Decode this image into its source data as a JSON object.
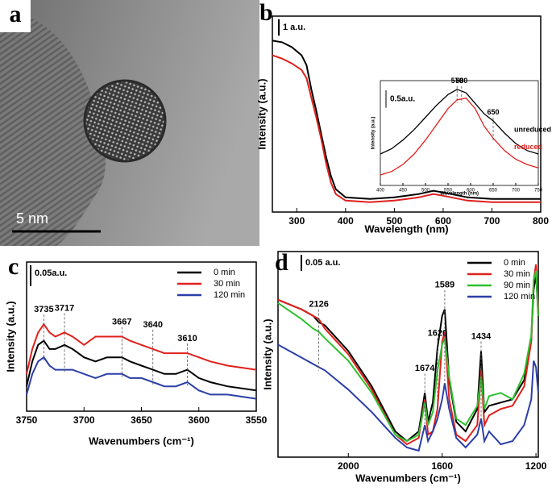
{
  "image_panel": {
    "label": "a",
    "scale_bar": "5 nm"
  },
  "chart_data": [
    {
      "type": "line",
      "panel": "b",
      "xlabel": "Wavelength (nm)",
      "ylabel": "Intensity (a.u.)",
      "xlim": [
        250,
        800
      ],
      "xticks": [
        300,
        400,
        500,
        600,
        700,
        800
      ],
      "ylim": [
        0,
        12
      ],
      "scale_bar": {
        "value": 1,
        "label": "1 a.u."
      },
      "x": [
        250,
        270,
        290,
        310,
        320,
        330,
        340,
        350,
        360,
        370,
        380,
        400,
        450,
        500,
        550,
        580,
        600,
        650,
        700,
        750,
        800
      ],
      "series": [
        {
          "color": "#000000",
          "values": [
            10.5,
            10.4,
            10.1,
            9.6,
            9.0,
            7.5,
            6.2,
            4.8,
            3.4,
            2.2,
            1.4,
            0.9,
            0.8,
            0.9,
            1.1,
            1.3,
            1.2,
            0.9,
            0.8,
            0.8,
            0.8
          ]
        },
        {
          "color": "#e0201c",
          "values": [
            9.6,
            9.4,
            9.1,
            8.7,
            8.2,
            7.0,
            5.8,
            4.5,
            3.0,
            1.8,
            1.1,
            0.7,
            0.6,
            0.7,
            0.9,
            1.1,
            1.0,
            0.7,
            0.6,
            0.6,
            0.6
          ]
        }
      ]
    },
    {
      "type": "line",
      "xlabel": "Wavelength (nm)",
      "ylabel": "Intensity (a.u.)",
      "xlim": [
        400,
        750
      ],
      "xticks": [
        400,
        450,
        500,
        550,
        600,
        650,
        700,
        750
      ],
      "ylim": [
        0,
        3
      ],
      "scale_bar": {
        "value": 0.5,
        "label": "0.5a.u."
      },
      "peaks": [
        570,
        580,
        650
      ],
      "x": [
        400,
        425,
        450,
        475,
        500,
        525,
        550,
        570,
        590,
        610,
        630,
        650,
        675,
        700,
        725,
        750
      ],
      "series": [
        {
          "name": "unreduced",
          "color": "#000000",
          "values": [
            0.9,
            1.05,
            1.3,
            1.6,
            1.95,
            2.3,
            2.6,
            2.75,
            2.65,
            2.35,
            2.05,
            1.85,
            1.5,
            1.2,
            1.0,
            0.9
          ]
        },
        {
          "name": "reduced",
          "color": "#e0201c",
          "values": [
            0.3,
            0.4,
            0.6,
            0.9,
            1.3,
            1.75,
            2.2,
            2.45,
            2.5,
            2.2,
            1.7,
            1.35,
            1.0,
            0.75,
            0.6,
            0.5
          ]
        }
      ]
    },
    {
      "type": "line",
      "panel": "c",
      "xlabel": "Wavenumbers (cm⁻¹)",
      "ylabel": "Intensity (a.u.)",
      "xlim": [
        3750,
        3550
      ],
      "xticks": [
        3750,
        3700,
        3650,
        3600,
        3550
      ],
      "ylim": [
        0,
        0.36
      ],
      "scale_bar": {
        "value": 0.05,
        "label": "0.05a.u."
      },
      "peaks": [
        3735,
        3717,
        3667,
        3640,
        3610
      ],
      "x": [
        3750,
        3745,
        3740,
        3735,
        3730,
        3725,
        3717,
        3710,
        3700,
        3690,
        3680,
        3667,
        3660,
        3650,
        3640,
        3630,
        3620,
        3610,
        3600,
        3590,
        3575,
        3550
      ],
      "series": [
        {
          "name": "0 min",
          "color": "#000000",
          "values": [
            0.06,
            0.12,
            0.16,
            0.17,
            0.15,
            0.15,
            0.16,
            0.15,
            0.13,
            0.12,
            0.13,
            0.13,
            0.12,
            0.11,
            0.1,
            0.09,
            0.09,
            0.1,
            0.08,
            0.07,
            0.06,
            0.05
          ]
        },
        {
          "name": "30 min",
          "color": "#e0201c",
          "values": [
            0.09,
            0.15,
            0.19,
            0.21,
            0.19,
            0.18,
            0.19,
            0.18,
            0.16,
            0.18,
            0.18,
            0.18,
            0.17,
            0.16,
            0.15,
            0.14,
            0.14,
            0.14,
            0.13,
            0.12,
            0.11,
            0.1
          ]
        },
        {
          "name": "120 min",
          "color": "#2b3fa8",
          "values": [
            0.04,
            0.09,
            0.12,
            0.13,
            0.11,
            0.1,
            0.1,
            0.1,
            0.09,
            0.08,
            0.09,
            0.09,
            0.08,
            0.08,
            0.07,
            0.06,
            0.06,
            0.07,
            0.05,
            0.04,
            0.04,
            0.03
          ]
        }
      ]
    },
    {
      "type": "line",
      "panel": "d",
      "xlabel": "Wavenumbers (cm⁻¹)",
      "ylabel": "Intensity (a.u.)",
      "xlim": [
        2300,
        1190
      ],
      "xticks": [
        2000,
        1600,
        1200
      ],
      "ylim": [
        0,
        0.64
      ],
      "scale_bar": {
        "value": 0.05,
        "label": "0.05 a.u."
      },
      "peaks": [
        2126,
        1674,
        1620,
        1589,
        1434
      ],
      "x": [
        2300,
        2200,
        2150,
        2126,
        2100,
        2000,
        1900,
        1800,
        1750,
        1700,
        1674,
        1660,
        1640,
        1620,
        1600,
        1589,
        1570,
        1540,
        1500,
        1450,
        1434,
        1420,
        1400,
        1350,
        1300,
        1250,
        1220,
        1210,
        1200,
        1190
      ],
      "series": [
        {
          "name": "0 min",
          "color": "#000000",
          "values": [
            0.49,
            0.46,
            0.44,
            0.42,
            0.41,
            0.33,
            0.22,
            0.08,
            0.05,
            0.08,
            0.2,
            0.11,
            0.17,
            0.34,
            0.44,
            0.46,
            0.24,
            0.11,
            0.08,
            0.15,
            0.33,
            0.14,
            0.16,
            0.17,
            0.18,
            0.24,
            0.37,
            0.52,
            0.57,
            0.44
          ]
        },
        {
          "name": "30 min",
          "color": "#e0201c",
          "values": [
            0.49,
            0.46,
            0.44,
            0.43,
            0.4,
            0.32,
            0.21,
            0.07,
            0.04,
            0.06,
            0.18,
            0.07,
            0.08,
            0.15,
            0.36,
            0.39,
            0.18,
            0.07,
            0.05,
            0.1,
            0.27,
            0.1,
            0.13,
            0.15,
            0.16,
            0.22,
            0.36,
            0.55,
            0.6,
            0.45
          ]
        },
        {
          "name": "90 min",
          "color": "#2ec02e",
          "values": [
            0.48,
            0.43,
            0.4,
            0.39,
            0.37,
            0.3,
            0.2,
            0.07,
            0.05,
            0.07,
            0.17,
            0.1,
            0.14,
            0.27,
            0.35,
            0.37,
            0.25,
            0.12,
            0.1,
            0.16,
            0.25,
            0.15,
            0.19,
            0.2,
            0.18,
            0.26,
            0.38,
            0.55,
            0.58,
            0.44
          ]
        },
        {
          "name": "120 min",
          "color": "#2b3fa8",
          "values": [
            0.35,
            0.31,
            0.29,
            0.28,
            0.27,
            0.21,
            0.14,
            0.06,
            0.03,
            0.02,
            0.1,
            0.05,
            0.08,
            0.12,
            0.18,
            0.23,
            0.15,
            0.06,
            0.03,
            0.07,
            0.12,
            0.05,
            0.08,
            0.04,
            0.05,
            0.1,
            0.18,
            0.3,
            0.28,
            0.2
          ]
        }
      ]
    }
  ]
}
